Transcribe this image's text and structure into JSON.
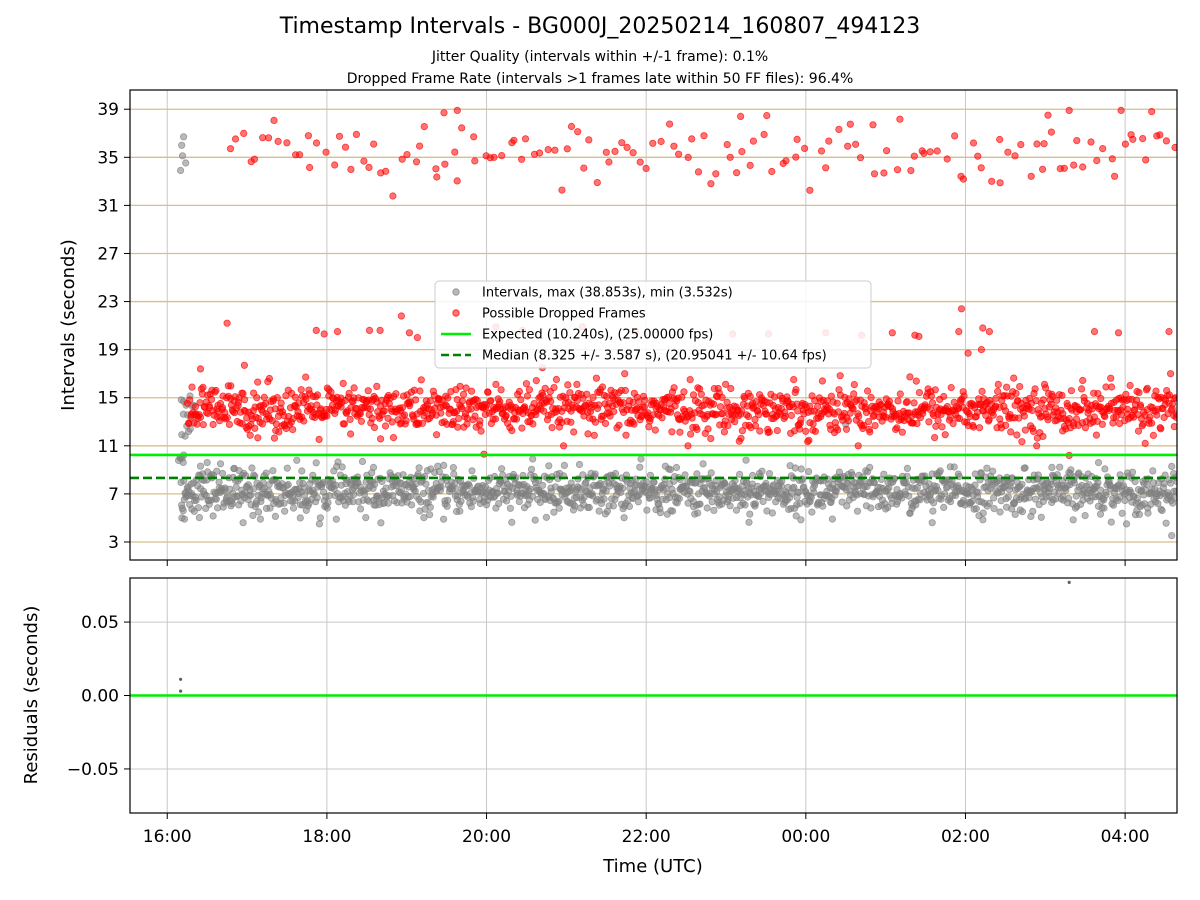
{
  "title": "Timestamp Intervals - BG000J_20250214_160807_494123",
  "subtitle_1": "Jitter Quality (intervals within +/-1 frame): 0.1%",
  "subtitle_2": "Dropped Frame Rate (intervals >1 frames late within 50 FF files): 96.4%",
  "colors": {
    "intervals": "#808080",
    "dropped": "#ff0000",
    "expected": "#00ee00",
    "median": "#008000",
    "hgrid": "#d8bf88",
    "vgrid": "#c8c8c8"
  },
  "chart_data": [
    {
      "type": "scatter",
      "xlabel": "",
      "ylabel": "Intervals (seconds)",
      "xlim": [
        "15:32",
        "04:39"
      ],
      "ylim": [
        1.5,
        40.6
      ],
      "x_ticks": [
        "16:00",
        "18:00",
        "20:00",
        "22:00",
        "00:00",
        "02:00",
        "04:00"
      ],
      "y_ticks": [
        3,
        7,
        11,
        15,
        19,
        23,
        27,
        31,
        35,
        39
      ],
      "grid": true,
      "legend_position": "center",
      "legend": [
        "Intervals, max (38.853s), min (3.532s)",
        "Possible Dropped Frames",
        "Expected (10.240s), (25.00000 fps)",
        "Median (8.325 +/- 3.587 s), (20.95041 +/- 10.64 fps)"
      ],
      "reference_lines": [
        {
          "label": "Expected (10.240s), (25.00000 fps)",
          "y": 10.24,
          "style": "solid"
        },
        {
          "label": "Median (8.325 +/- 3.587 s), (20.95041 +/- 10.64 fps)",
          "y": 8.325,
          "style": "dashed"
        }
      ],
      "series": [
        {
          "name": "Intervals, max (38.853s), min (3.532s)",
          "x_range": [
            "16:08",
            "04:39"
          ],
          "bands": [
            {
              "x_from": "16:08",
              "x_to": "16:13",
              "center": 10.1,
              "spread": 0.3,
              "count": 6
            },
            {
              "x_from": "16:10",
              "x_to": "16:14",
              "center": 35.6,
              "spread": 0.9,
              "count": 4
            },
            {
              "x_from": "16:10",
              "x_to": "16:20",
              "center": 13.6,
              "spread": 1.2,
              "count": 14
            },
            {
              "x_from": "16:10",
              "x_to": "04:39",
              "center": 7.2,
              "spread": 0.9,
              "count": 1500
            }
          ],
          "points": [
            {
              "x": "16:10",
              "y": 33.9
            },
            {
              "x": "16:11",
              "y": 5.0
            },
            {
              "x": "16:13",
              "y": 4.9
            },
            {
              "x": "16:25",
              "y": 9.3
            },
            {
              "x": "16:30",
              "y": 9.6
            },
            {
              "x": "16:40",
              "y": 9.5
            },
            {
              "x": "16:50",
              "y": 9.1
            },
            {
              "x": "16:57",
              "y": 4.6
            },
            {
              "x": "17:10",
              "y": 4.9
            },
            {
              "x": "17:40",
              "y": 5.0
            },
            {
              "x": "18:35",
              "y": 9.2
            },
            {
              "x": "20:55",
              "y": 8.7
            },
            {
              "x": "23:15",
              "y": 9.8
            },
            {
              "x": "23:25",
              "y": 8.7
            },
            {
              "x": "00:30",
              "y": 12.8
            },
            {
              "x": "00:20",
              "y": 4.9
            },
            {
              "x": "01:35",
              "y": 4.6
            },
            {
              "x": "03:05",
              "y": 9.2
            },
            {
              "x": "03:40",
              "y": 9.6
            },
            {
              "x": "04:35",
              "y": 3.532
            }
          ]
        },
        {
          "name": "Possible Dropped Frames",
          "x_range": [
            "16:15",
            "04:39"
          ],
          "bands": [
            {
              "x_from": "16:15",
              "x_to": "04:39",
              "center": 14.0,
              "spread": 1.0,
              "count": 1300
            },
            {
              "x_from": "16:45",
              "x_to": "04:39",
              "center": 35.3,
              "spread": 1.4,
              "count": 150
            }
          ],
          "points": [
            {
              "x": "16:25",
              "y": 17.4
            },
            {
              "x": "16:45",
              "y": 21.2
            },
            {
              "x": "16:58",
              "y": 17.7
            },
            {
              "x": "17:08",
              "y": 16.3
            },
            {
              "x": "17:52",
              "y": 20.6
            },
            {
              "x": "17:58",
              "y": 20.3
            },
            {
              "x": "18:08",
              "y": 20.5
            },
            {
              "x": "18:32",
              "y": 20.6
            },
            {
              "x": "18:56",
              "y": 21.8
            },
            {
              "x": "18:40",
              "y": 20.6
            },
            {
              "x": "19:02",
              "y": 20.4
            },
            {
              "x": "19:08",
              "y": 20.0
            },
            {
              "x": "20:07",
              "y": 20.9
            },
            {
              "x": "20:27",
              "y": 20.6
            },
            {
              "x": "19:58",
              "y": 10.3
            },
            {
              "x": "20:42",
              "y": 17.5
            },
            {
              "x": "21:12",
              "y": 20.9
            },
            {
              "x": "21:52",
              "y": 20.5
            },
            {
              "x": "23:05",
              "y": 20.3
            },
            {
              "x": "23:32",
              "y": 20.3
            },
            {
              "x": "00:15",
              "y": 20.4
            },
            {
              "x": "00:42",
              "y": 20.2
            },
            {
              "x": "01:05",
              "y": 20.4
            },
            {
              "x": "01:22",
              "y": 20.2
            },
            {
              "x": "01:25",
              "y": 20.1
            },
            {
              "x": "01:57",
              "y": 22.4
            },
            {
              "x": "01:55",
              "y": 20.5
            },
            {
              "x": "02:13",
              "y": 20.8
            },
            {
              "x": "02:18",
              "y": 20.5
            },
            {
              "x": "02:12",
              "y": 19.0
            },
            {
              "x": "02:02",
              "y": 18.7
            },
            {
              "x": "03:37",
              "y": 20.5
            },
            {
              "x": "03:55",
              "y": 20.4
            },
            {
              "x": "04:33",
              "y": 20.5
            },
            {
              "x": "03:18",
              "y": 10.2
            },
            {
              "x": "04:37",
              "y": 12.6
            },
            {
              "x": "19:28",
              "y": 38.7
            },
            {
              "x": "19:38",
              "y": 38.9
            },
            {
              "x": "23:11",
              "y": 38.4
            },
            {
              "x": "03:18",
              "y": 38.9
            },
            {
              "x": "03:02",
              "y": 38.5
            },
            {
              "x": "04:20",
              "y": 38.8
            },
            {
              "x": "03:57",
              "y": 38.9
            }
          ]
        }
      ]
    },
    {
      "type": "scatter",
      "xlabel": "Time (UTC)",
      "ylabel": "Residuals (seconds)",
      "xlim": [
        "15:32",
        "04:39"
      ],
      "ylim": [
        -0.08,
        0.08
      ],
      "x_ticks": [
        "16:00",
        "18:00",
        "20:00",
        "22:00",
        "00:00",
        "02:00",
        "04:00"
      ],
      "y_ticks": [
        "0.05",
        "0.00",
        "−0.05"
      ],
      "y_tick_values": [
        0.05,
        0.0,
        -0.05
      ],
      "grid": true,
      "reference_lines": [
        {
          "y": 0.0,
          "style": "solid"
        }
      ],
      "series": [
        {
          "points": [
            {
              "x": "16:10",
              "y": 0.011
            },
            {
              "x": "16:10",
              "y": 0.003
            },
            {
              "x": "03:18",
              "y": 0.077
            }
          ]
        }
      ]
    }
  ]
}
